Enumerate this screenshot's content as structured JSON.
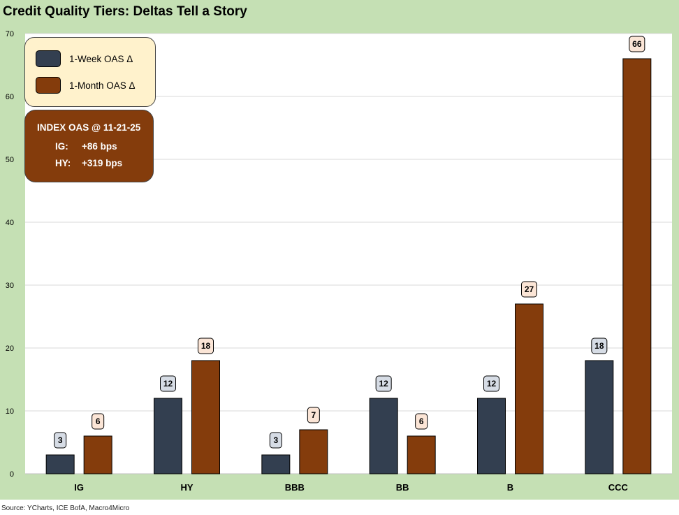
{
  "title": "Credit Quality Tiers: Deltas Tell a Story",
  "source": "Source: YCharts, ICE BofA, Macro4Micro",
  "legend": {
    "series1": "1-Week OAS Δ",
    "series2": "1-Month OAS Δ"
  },
  "index_box": {
    "title": "INDEX OAS @ 11-21-25",
    "ig_label": "IG:",
    "ig_value": "+86 bps",
    "hy_label": "HY:",
    "hy_value": "+319 bps"
  },
  "colors": {
    "week": "#333f50",
    "month": "#843c0c",
    "week_label_bg": "#d6dce5",
    "month_label_bg": "#fbe5d6",
    "frame": "#c5e0b4"
  },
  "chart_data": {
    "type": "bar",
    "title": "Credit Quality Tiers: Deltas Tell a Story",
    "categories": [
      "IG",
      "HY",
      "BBB",
      "BB",
      "B",
      "CCC"
    ],
    "series": [
      {
        "name": "1-Week OAS Δ",
        "values": [
          3,
          12,
          3,
          12,
          12,
          18
        ]
      },
      {
        "name": "1-Month OAS Δ",
        "values": [
          6,
          18,
          7,
          6,
          27,
          66
        ]
      }
    ],
    "yticks": [
      0,
      10,
      20,
      30,
      40,
      50,
      60,
      70
    ],
    "ylim": [
      0,
      70
    ],
    "xlabel": "",
    "ylabel": "",
    "grid": true
  }
}
